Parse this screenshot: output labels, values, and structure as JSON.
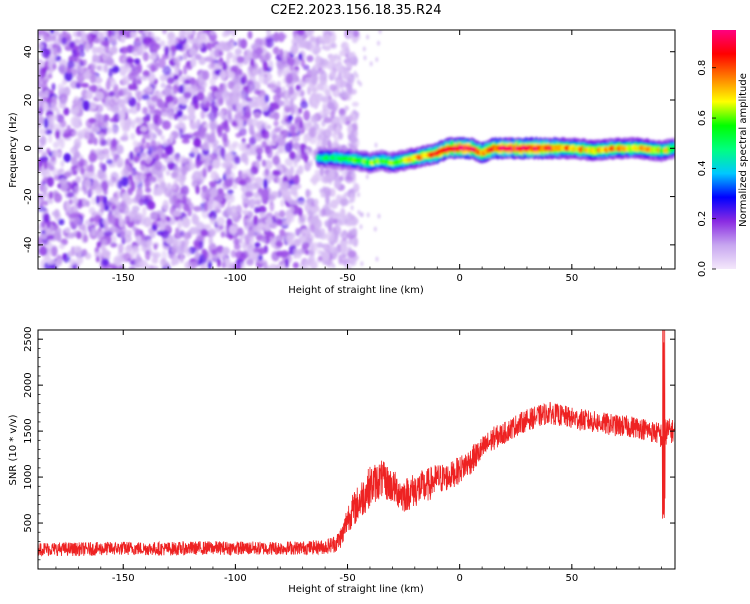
{
  "page_title": "C2E2.2023.156.18.35.R24",
  "chart_data": [
    {
      "type": "heatmap",
      "title": "",
      "xlabel": "Height of straight line (km)",
      "ylabel": "Frequency (Hz)",
      "xlim": [
        -188,
        96
      ],
      "ylim": [
        -50,
        49
      ],
      "xticks": [
        -150,
        -100,
        -50,
        0,
        50
      ],
      "yticks": [
        -40,
        -20,
        0,
        20,
        40
      ],
      "x_tick_labels": [
        "-150",
        "-100",
        "-50",
        "0",
        "50"
      ],
      "y_tick_labels": [
        "-40",
        "-20",
        "0",
        "20",
        "40"
      ],
      "colorbar": {
        "label": "Normalized spectral amplitude",
        "range": [
          0.0,
          0.95
        ],
        "ticks": [
          0.0,
          0.2,
          0.4,
          0.6,
          0.8
        ],
        "tick_labels": [
          "0.0",
          "0.2",
          "0.4",
          "0.6",
          "0.8"
        ],
        "colormap": [
          "#f4e8fb",
          "#c7a6f0",
          "#8a2be2",
          "#0000ff",
          "#00c8ff",
          "#00ff80",
          "#00ff00",
          "#ffff00",
          "#ff8000",
          "#ff0000",
          "#ff0080"
        ]
      },
      "noise_region": {
        "x_range": [
          -188,
          -52
        ],
        "amplitude_range": [
          0.0,
          0.18
        ]
      },
      "ridge": {
        "x": [
          -63,
          -55,
          -45,
          -40,
          -35,
          -30,
          -25,
          -20,
          -15,
          -10,
          -5,
          0,
          5,
          10,
          15,
          20,
          30,
          40,
          50,
          60,
          70,
          80,
          90,
          96
        ],
        "frequency": [
          -4,
          -4,
          -5,
          -6,
          -5,
          -6,
          -5,
          -4,
          -3,
          -2,
          0,
          0,
          0,
          -2,
          0,
          0,
          0,
          0,
          0,
          -1,
          0,
          0,
          -1,
          0
        ],
        "amplitude": [
          0.45,
          0.5,
          0.55,
          0.6,
          0.55,
          0.6,
          0.62,
          0.7,
          0.75,
          0.8,
          0.9,
          0.92,
          0.88,
          0.8,
          0.85,
          0.88,
          0.9,
          0.85,
          0.75,
          0.7,
          0.72,
          0.7,
          0.65,
          0.6
        ]
      }
    },
    {
      "type": "line",
      "title": "",
      "xlabel": "Height of straight line (km)",
      "ylabel": "SNR (10 * v/v)",
      "xlim": [
        -188,
        96
      ],
      "ylim": [
        0,
        2600
      ],
      "xticks": [
        -150,
        -100,
        -50,
        0,
        50
      ],
      "yticks": [
        500,
        1000,
        1500,
        2000,
        2500
      ],
      "x_tick_labels": [
        "-150",
        "-100",
        "-50",
        "0",
        "50"
      ],
      "y_tick_labels": [
        "500",
        "1000",
        "1500",
        "2000",
        "2500"
      ],
      "series": [
        {
          "color": "#ee2222",
          "x": [
            -188,
            -170,
            -150,
            -130,
            -110,
            -90,
            -70,
            -60,
            -55,
            -52,
            -50,
            -45,
            -40,
            -35,
            -30,
            -25,
            -20,
            -15,
            -10,
            -5,
            0,
            5,
            10,
            15,
            20,
            25,
            30,
            40,
            50,
            60,
            70,
            80,
            85,
            88,
            90,
            92,
            96
          ],
          "y": [
            220,
            215,
            225,
            220,
            230,
            225,
            230,
            240,
            280,
            380,
            560,
            720,
            900,
            980,
            900,
            800,
            860,
            900,
            980,
            1000,
            1080,
            1180,
            1300,
            1420,
            1480,
            1560,
            1620,
            1700,
            1640,
            1600,
            1560,
            1540,
            1500,
            1480,
            1450,
            1500,
            1500
          ],
          "noise": [
            150,
            150,
            150,
            150,
            150,
            150,
            150,
            160,
            200,
            260,
            320,
            420,
            450,
            420,
            380,
            380,
            380,
            380,
            340,
            300,
            300,
            300,
            280,
            260,
            240,
            240,
            240,
            240,
            240,
            240,
            240,
            240,
            240,
            240,
            300,
            300,
            240
          ]
        }
      ]
    }
  ]
}
